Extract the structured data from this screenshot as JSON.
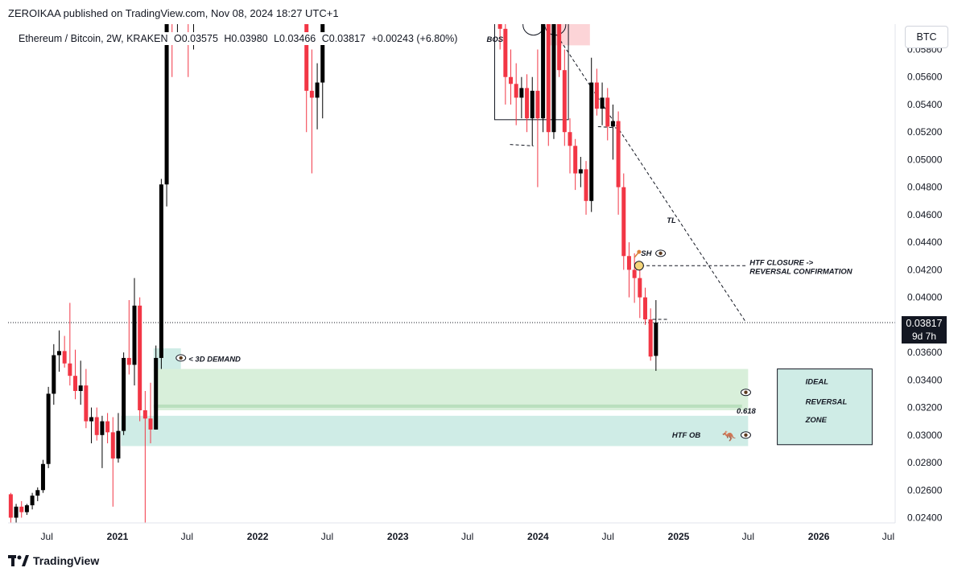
{
  "publisher": "ZEROIKAA published on TradingView.com, Nov 08, 2024 18:27 UTC+1",
  "legend": {
    "symbol": "Ethereum / Bitcoin, 2W, KRAKEN",
    "open": "O0.03575",
    "high": "H0.03980",
    "low": "L0.03466",
    "close": "C0.03817",
    "change": "+0.00243 (+6.80%)"
  },
  "currency": "BTC",
  "last_price": "0.03817",
  "countdown": "9d 7h",
  "brand": "TradingView",
  "colors": {
    "up": "#000000",
    "down": "#f23645",
    "demand_zone": "#d8efda",
    "ob_zone": "#cfece6",
    "bos_zone": "#fcd4d7"
  },
  "chart_data": {
    "type": "candlestick",
    "interval": "2W",
    "ylim": [
      0.0235,
      0.0592
    ],
    "y_ticks": [
      "0.02400",
      "0.02600",
      "0.02800",
      "0.03000",
      "0.03200",
      "0.03400",
      "0.03600",
      "0.03800",
      "0.04000",
      "0.04200",
      "0.04400",
      "0.04600",
      "0.04800",
      "0.05000",
      "0.05200",
      "0.05400",
      "0.05600",
      "0.05800"
    ],
    "x_ticks": [
      {
        "label": "Jul",
        "month": "2020-07",
        "bold": false
      },
      {
        "label": "2021",
        "month": "2021-01",
        "bold": true
      },
      {
        "label": "Jul",
        "month": "2021-07",
        "bold": false
      },
      {
        "label": "2022",
        "month": "2022-01",
        "bold": true
      },
      {
        "label": "Jul",
        "month": "2022-07",
        "bold": false
      },
      {
        "label": "2023",
        "month": "2023-01",
        "bold": true
      },
      {
        "label": "Jul",
        "month": "2023-07",
        "bold": false
      },
      {
        "label": "2024",
        "month": "2024-01",
        "bold": true
      },
      {
        "label": "Jul",
        "month": "2024-07",
        "bold": false
      },
      {
        "label": "2025",
        "month": "2025-01",
        "bold": true
      },
      {
        "label": "Jul",
        "month": "2025-07",
        "bold": false
      },
      {
        "label": "2026",
        "month": "2026-01",
        "bold": true
      },
      {
        "label": "Jul",
        "month": "2026-07",
        "bold": false
      }
    ],
    "candles": [
      {
        "t": "2020-03-15",
        "o": 0.0234,
        "h": 0.0262,
        "l": 0.0232,
        "c": 0.0257
      },
      {
        "t": "2020-03-29",
        "o": 0.0257,
        "h": 0.0258,
        "l": 0.0236,
        "c": 0.024
      },
      {
        "t": "2020-04-12",
        "o": 0.024,
        "h": 0.025,
        "l": 0.0236,
        "c": 0.0248
      },
      {
        "t": "2020-04-26",
        "o": 0.0248,
        "h": 0.0252,
        "l": 0.024,
        "c": 0.0244
      },
      {
        "t": "2020-05-10",
        "o": 0.0244,
        "h": 0.025,
        "l": 0.0242,
        "c": 0.0249
      },
      {
        "t": "2020-05-24",
        "o": 0.0249,
        "h": 0.0258,
        "l": 0.0246,
        "c": 0.0256
      },
      {
        "t": "2020-06-07",
        "o": 0.0256,
        "h": 0.0262,
        "l": 0.0252,
        "c": 0.026
      },
      {
        "t": "2020-06-21",
        "o": 0.026,
        "h": 0.0282,
        "l": 0.0258,
        "c": 0.0279
      },
      {
        "t": "2020-07-05",
        "o": 0.0279,
        "h": 0.0335,
        "l": 0.0276,
        "c": 0.033
      },
      {
        "t": "2020-07-19",
        "o": 0.033,
        "h": 0.0366,
        "l": 0.0322,
        "c": 0.0358
      },
      {
        "t": "2020-08-02",
        "o": 0.0358,
        "h": 0.0376,
        "l": 0.0346,
        "c": 0.0361
      },
      {
        "t": "2020-08-16",
        "o": 0.0361,
        "h": 0.0372,
        "l": 0.0349,
        "c": 0.0352
      },
      {
        "t": "2020-08-30",
        "o": 0.0352,
        "h": 0.0396,
        "l": 0.0336,
        "c": 0.0343
      },
      {
        "t": "2020-09-13",
        "o": 0.0343,
        "h": 0.0362,
        "l": 0.0326,
        "c": 0.0332
      },
      {
        "t": "2020-09-27",
        "o": 0.0332,
        "h": 0.0354,
        "l": 0.0322,
        "c": 0.0336
      },
      {
        "t": "2020-10-11",
        "o": 0.0336,
        "h": 0.0348,
        "l": 0.0305,
        "c": 0.031
      },
      {
        "t": "2020-10-25",
        "o": 0.031,
        "h": 0.032,
        "l": 0.0294,
        "c": 0.0313
      },
      {
        "t": "2020-11-08",
        "o": 0.0313,
        "h": 0.032,
        "l": 0.0296,
        "c": 0.03
      },
      {
        "t": "2020-11-22",
        "o": 0.03,
        "h": 0.0314,
        "l": 0.0276,
        "c": 0.031
      },
      {
        "t": "2020-12-06",
        "o": 0.031,
        "h": 0.0316,
        "l": 0.0294,
        "c": 0.0302
      },
      {
        "t": "2020-12-20",
        "o": 0.0302,
        "h": 0.0313,
        "l": 0.0248,
        "c": 0.0283
      },
      {
        "t": "2021-01-03",
        "o": 0.0283,
        "h": 0.0316,
        "l": 0.028,
        "c": 0.0303
      },
      {
        "t": "2021-01-17",
        "o": 0.0303,
        "h": 0.036,
        "l": 0.03,
        "c": 0.0356
      },
      {
        "t": "2021-01-31",
        "o": 0.0356,
        "h": 0.0398,
        "l": 0.0344,
        "c": 0.0351
      },
      {
        "t": "2021-02-14",
        "o": 0.0351,
        "h": 0.0414,
        "l": 0.0336,
        "c": 0.0394
      },
      {
        "t": "2021-02-28",
        "o": 0.0394,
        "h": 0.04,
        "l": 0.031,
        "c": 0.0318
      },
      {
        "t": "2021-03-14",
        "o": 0.0318,
        "h": 0.0332,
        "l": 0.0232,
        "c": 0.0312
      },
      {
        "t": "2021-03-28",
        "o": 0.0312,
        "h": 0.0338,
        "l": 0.0294,
        "c": 0.0304
      },
      {
        "t": "2021-04-11",
        "o": 0.0304,
        "h": 0.0365,
        "l": 0.0304,
        "c": 0.0356
      },
      {
        "t": "2021-04-25",
        "o": 0.0356,
        "h": 0.0486,
        "l": 0.0348,
        "c": 0.0482
      },
      {
        "t": "2021-05-09",
        "o": 0.0482,
        "h": 0.064,
        "l": 0.0466,
        "c": 0.062
      },
      {
        "t": "2021-05-23",
        "o": 0.062,
        "h": 0.065,
        "l": 0.056,
        "c": 0.0606
      },
      {
        "t": "2021-06-06",
        "o": 0.0606,
        "h": 0.0625,
        "l": 0.059,
        "c": 0.0612
      },
      {
        "t": "2021-06-20",
        "o": 0.0612,
        "h": 0.065,
        "l": 0.06,
        "c": 0.063
      },
      {
        "t": "2021-07-04",
        "o": 0.063,
        "h": 0.064,
        "l": 0.056,
        "c": 0.06
      },
      {
        "t": "2021-07-18",
        "o": 0.06,
        "h": 0.062,
        "l": 0.058,
        "c": 0.061
      },
      {
        "t": "2022-05-08",
        "o": 0.07,
        "h": 0.071,
        "l": 0.052,
        "c": 0.055
      },
      {
        "t": "2022-05-22",
        "o": 0.055,
        "h": 0.058,
        "l": 0.049,
        "c": 0.0545
      },
      {
        "t": "2022-06-05",
        "o": 0.0545,
        "h": 0.057,
        "l": 0.0522,
        "c": 0.0556
      },
      {
        "t": "2022-06-19",
        "o": 0.0556,
        "h": 0.068,
        "l": 0.053,
        "c": 0.0665
      },
      {
        "t": "2023-09-24",
        "o": 0.064,
        "h": 0.065,
        "l": 0.058,
        "c": 0.0595
      },
      {
        "t": "2023-10-08",
        "o": 0.0595,
        "h": 0.0605,
        "l": 0.054,
        "c": 0.056
      },
      {
        "t": "2023-10-22",
        "o": 0.056,
        "h": 0.058,
        "l": 0.054,
        "c": 0.0555
      },
      {
        "t": "2023-11-05",
        "o": 0.0555,
        "h": 0.057,
        "l": 0.0525,
        "c": 0.0545
      },
      {
        "t": "2023-11-19",
        "o": 0.0545,
        "h": 0.056,
        "l": 0.053,
        "c": 0.0552
      },
      {
        "t": "2023-12-03",
        "o": 0.0552,
        "h": 0.0562,
        "l": 0.052,
        "c": 0.053
      },
      {
        "t": "2023-12-17",
        "o": 0.053,
        "h": 0.056,
        "l": 0.051,
        "c": 0.055
      },
      {
        "t": "2023-12-31",
        "o": 0.055,
        "h": 0.058,
        "l": 0.048,
        "c": 0.053
      },
      {
        "t": "2024-01-14",
        "o": 0.053,
        "h": 0.061,
        "l": 0.052,
        "c": 0.06
      },
      {
        "t": "2024-01-28",
        "o": 0.06,
        "h": 0.062,
        "l": 0.051,
        "c": 0.052
      },
      {
        "t": "2024-02-11",
        "o": 0.052,
        "h": 0.064,
        "l": 0.0515,
        "c": 0.062
      },
      {
        "t": "2024-02-25",
        "o": 0.062,
        "h": 0.063,
        "l": 0.056,
        "c": 0.0565
      },
      {
        "t": "2024-03-10",
        "o": 0.0565,
        "h": 0.058,
        "l": 0.051,
        "c": 0.052
      },
      {
        "t": "2024-03-24",
        "o": 0.052,
        "h": 0.053,
        "l": 0.049,
        "c": 0.051
      },
      {
        "t": "2024-04-07",
        "o": 0.051,
        "h": 0.0515,
        "l": 0.0478,
        "c": 0.049
      },
      {
        "t": "2024-04-21",
        "o": 0.049,
        "h": 0.0502,
        "l": 0.048,
        "c": 0.0493
      },
      {
        "t": "2024-05-05",
        "o": 0.0493,
        "h": 0.0499,
        "l": 0.046,
        "c": 0.047
      },
      {
        "t": "2024-05-19",
        "o": 0.047,
        "h": 0.0574,
        "l": 0.0462,
        "c": 0.0556
      },
      {
        "t": "2024-06-02",
        "o": 0.0556,
        "h": 0.0566,
        "l": 0.0532,
        "c": 0.0537
      },
      {
        "t": "2024-06-16",
        "o": 0.0537,
        "h": 0.0556,
        "l": 0.0525,
        "c": 0.0545
      },
      {
        "t": "2024-06-30",
        "o": 0.0545,
        "h": 0.0552,
        "l": 0.0514,
        "c": 0.0524
      },
      {
        "t": "2024-07-14",
        "o": 0.0524,
        "h": 0.054,
        "l": 0.05,
        "c": 0.0528
      },
      {
        "t": "2024-07-28",
        "o": 0.0528,
        "h": 0.0535,
        "l": 0.046,
        "c": 0.048
      },
      {
        "t": "2024-08-11",
        "o": 0.048,
        "h": 0.049,
        "l": 0.042,
        "c": 0.043
      },
      {
        "t": "2024-08-25",
        "o": 0.043,
        "h": 0.044,
        "l": 0.04,
        "c": 0.042
      },
      {
        "t": "2024-09-08",
        "o": 0.042,
        "h": 0.0432,
        "l": 0.0396,
        "c": 0.0414
      },
      {
        "t": "2024-09-22",
        "o": 0.0414,
        "h": 0.0424,
        "l": 0.0385,
        "c": 0.04
      },
      {
        "t": "2024-10-06",
        "o": 0.04,
        "h": 0.0407,
        "l": 0.038,
        "c": 0.0384
      },
      {
        "t": "2024-10-20",
        "o": 0.0384,
        "h": 0.0392,
        "l": 0.0354,
        "c": 0.0357
      },
      {
        "t": "2024-11-03",
        "o": 0.03575,
        "h": 0.0398,
        "l": 0.03466,
        "c": 0.03817
      }
    ],
    "annotations": {
      "bos": "BOS",
      "tl": "TL",
      "sh": "SH",
      "htf_closure": "HTF CLOSURE ->",
      "reversal_confirmation": "REVERSAL CONFIRMATION",
      "demand": "< 3D DEMAND",
      "fib": "0.618",
      "htf_ob": "HTF OB",
      "ideal": "IDEAL",
      "reversal": "REVERSAL",
      "zone": "ZONE"
    },
    "zones": {
      "demand_3d": {
        "from": 0.0346,
        "to": 0.0363
      },
      "demand_zone": {
        "from": 0.0318,
        "to": 0.0348
      },
      "fib_618": 0.0321,
      "htf_ob": {
        "from": 0.0292,
        "to": 0.0314
      },
      "ideal_reversal_zone": {
        "from": 0.0293,
        "to": 0.0348
      },
      "bos_zone": {
        "from": 0.0583,
        "to": 0.06
      },
      "bos_box": {
        "from": 0.0529,
        "to": 0.06
      },
      "sh_level": 0.0423
    },
    "grid": false,
    "legend": "top-left"
  }
}
